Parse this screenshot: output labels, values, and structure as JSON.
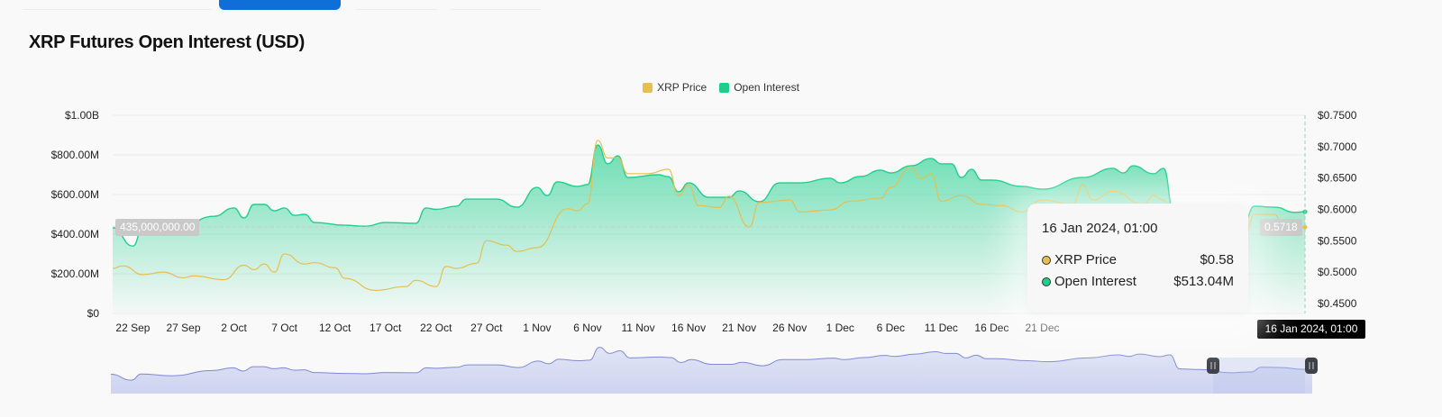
{
  "page": {
    "title": "XRP Futures Open Interest (USD)"
  },
  "legend": [
    {
      "label": "XRP Price",
      "color": "#e6bf4f"
    },
    {
      "label": "Open Interest",
      "color": "#1ecf8c"
    }
  ],
  "crosshair": {
    "left_value": "435,000,000.00",
    "right_value": "0.5718",
    "x_value": "16 Jan 2024, 01:00"
  },
  "tooltip": {
    "date": "16 Jan 2024, 01:00",
    "rows": [
      {
        "label": "XRP Price",
        "value": "$0.58",
        "color": "#e6bf4f"
      },
      {
        "label": "Open Interest",
        "value": "$513.04M",
        "color": "#1ecf8c"
      }
    ]
  },
  "chart_data": {
    "type": "area",
    "title": "XRP Futures Open Interest (USD)",
    "x_ticks": [
      "22 Sep",
      "27 Sep",
      "2 Oct",
      "7 Oct",
      "12 Oct",
      "17 Oct",
      "22 Oct",
      "27 Oct",
      "1 Nov",
      "6 Nov",
      "11 Nov",
      "16 Nov",
      "21 Nov",
      "26 Nov",
      "1 Dec",
      "6 Dec",
      "11 Dec",
      "16 Dec",
      "21 Dec"
    ],
    "x_range": [
      "2023-09-20",
      "2024-01-16"
    ],
    "y_left": {
      "ticks": [
        "$0",
        "$200.00M",
        "$400.00M",
        "$600.00M",
        "$800.00M",
        "$1.00B"
      ],
      "range": [
        0,
        1000000000
      ]
    },
    "y_right": {
      "ticks": [
        "$0.4500",
        "$0.5000",
        "$0.5500",
        "$0.6000",
        "$0.6500",
        "$0.7000",
        "$0.7500"
      ],
      "range": [
        0.4342,
        0.75
      ]
    },
    "grid": true,
    "legend_position": "top",
    "series": [
      {
        "name": "Open Interest",
        "axis": "left",
        "type": "area",
        "color": "#1ecf8c",
        "points": [
          [
            "2023-09-20",
            432
          ],
          [
            "2023-09-22",
            340
          ],
          [
            "2023-09-23",
            436
          ],
          [
            "2023-09-26",
            409
          ],
          [
            "2023-09-30",
            490
          ],
          [
            "2023-10-02",
            532
          ],
          [
            "2023-10-03",
            482
          ],
          [
            "2023-10-04",
            550
          ],
          [
            "2023-10-05",
            550
          ],
          [
            "2023-10-06",
            518
          ],
          [
            "2023-10-07",
            532
          ],
          [
            "2023-10-08",
            495
          ],
          [
            "2023-10-09",
            500
          ],
          [
            "2023-10-10",
            459
          ],
          [
            "2023-10-13",
            445
          ],
          [
            "2023-10-15",
            440
          ],
          [
            "2023-10-17",
            459
          ],
          [
            "2023-10-20",
            455
          ],
          [
            "2023-10-21",
            532
          ],
          [
            "2023-10-22",
            525
          ],
          [
            "2023-10-24",
            541
          ],
          [
            "2023-10-25",
            577
          ],
          [
            "2023-10-28",
            577
          ],
          [
            "2023-10-30",
            536
          ],
          [
            "2023-11-01",
            636
          ],
          [
            "2023-11-02",
            595
          ],
          [
            "2023-11-03",
            664
          ],
          [
            "2023-11-05",
            641
          ],
          [
            "2023-11-06",
            650
          ],
          [
            "2023-11-07",
            850
          ],
          [
            "2023-11-08",
            755
          ],
          [
            "2023-11-09",
            795
          ],
          [
            "2023-11-10",
            686
          ],
          [
            "2023-11-13",
            700
          ],
          [
            "2023-11-14",
            690
          ],
          [
            "2023-11-15",
            614
          ],
          [
            "2023-11-16",
            659
          ],
          [
            "2023-11-18",
            586
          ],
          [
            "2023-11-20",
            586
          ],
          [
            "2023-11-21",
            618
          ],
          [
            "2023-11-23",
            564
          ],
          [
            "2023-11-25",
            659
          ],
          [
            "2023-11-27",
            659
          ],
          [
            "2023-11-30",
            682
          ],
          [
            "2023-12-01",
            659
          ],
          [
            "2023-12-03",
            691
          ],
          [
            "2023-12-05",
            723
          ],
          [
            "2023-12-06",
            709
          ],
          [
            "2023-12-08",
            745
          ],
          [
            "2023-12-10",
            782
          ],
          [
            "2023-12-11",
            755
          ],
          [
            "2023-12-12",
            755
          ],
          [
            "2023-12-13",
            686
          ],
          [
            "2023-12-14",
            727
          ],
          [
            "2023-12-15",
            673
          ],
          [
            "2023-12-16",
            673
          ],
          [
            "2023-12-19",
            641
          ],
          [
            "2023-12-21",
            627
          ],
          [
            "2023-12-25",
            686
          ],
          [
            "2023-12-28",
            732
          ],
          [
            "2023-12-29",
            709
          ],
          [
            "2023-12-30",
            745
          ],
          [
            "2024-01-01",
            705
          ],
          [
            "2024-01-02",
            732
          ],
          [
            "2024-01-03",
            514
          ],
          [
            "2024-01-05",
            505
          ],
          [
            "2024-01-08",
            455
          ],
          [
            "2024-01-10",
            468
          ],
          [
            "2024-01-11",
            541
          ],
          [
            "2024-01-13",
            536
          ],
          [
            "2024-01-15",
            510
          ],
          [
            "2024-01-16",
            513.04
          ]
        ],
        "unit": "USD millions"
      },
      {
        "name": "XRP Price",
        "axis": "right",
        "type": "line",
        "color": "#e6bf4f",
        "points": [
          [
            "2023-09-20",
            0.506
          ],
          [
            "2023-09-21",
            0.51
          ],
          [
            "2023-09-23",
            0.496
          ],
          [
            "2023-09-25",
            0.5
          ],
          [
            "2023-09-27",
            0.491
          ],
          [
            "2023-09-28",
            0.494
          ],
          [
            "2023-10-01",
            0.488
          ],
          [
            "2023-10-03",
            0.511
          ],
          [
            "2023-10-04",
            0.504
          ],
          [
            "2023-10-05",
            0.513
          ],
          [
            "2023-10-06",
            0.5
          ],
          [
            "2023-10-07",
            0.529
          ],
          [
            "2023-10-09",
            0.513
          ],
          [
            "2023-10-10",
            0.515
          ],
          [
            "2023-10-12",
            0.507
          ],
          [
            "2023-10-13",
            0.49
          ],
          [
            "2023-10-16",
            0.471
          ],
          [
            "2023-10-19",
            0.477
          ],
          [
            "2023-10-20",
            0.487
          ],
          [
            "2023-10-22",
            0.477
          ],
          [
            "2023-10-23",
            0.509
          ],
          [
            "2023-10-24",
            0.506
          ],
          [
            "2023-10-26",
            0.514
          ],
          [
            "2023-10-27",
            0.55
          ],
          [
            "2023-10-29",
            0.543
          ],
          [
            "2023-10-30",
            0.533
          ],
          [
            "2023-11-01",
            0.539
          ],
          [
            "2023-11-04",
            0.601
          ],
          [
            "2023-11-05",
            0.598
          ],
          [
            "2023-11-06",
            0.609
          ],
          [
            "2023-11-07",
            0.71
          ],
          [
            "2023-11-08",
            0.682
          ],
          [
            "2023-11-09",
            0.682
          ],
          [
            "2023-11-10",
            0.657
          ],
          [
            "2023-11-12",
            0.657
          ],
          [
            "2023-11-14",
            0.664
          ],
          [
            "2023-11-15",
            0.622
          ],
          [
            "2023-11-16",
            0.639
          ],
          [
            "2023-11-17",
            0.606
          ],
          [
            "2023-11-19",
            0.603
          ],
          [
            "2023-11-20",
            0.621
          ],
          [
            "2023-11-22",
            0.572
          ],
          [
            "2023-11-23",
            0.611
          ],
          [
            "2023-11-26",
            0.615
          ],
          [
            "2023-11-27",
            0.596
          ],
          [
            "2023-11-30",
            0.599
          ],
          [
            "2023-12-02",
            0.613
          ],
          [
            "2023-12-05",
            0.618
          ],
          [
            "2023-12-06",
            0.635
          ],
          [
            "2023-12-08",
            0.668
          ],
          [
            "2023-12-09",
            0.649
          ],
          [
            "2023-12-10",
            0.657
          ],
          [
            "2023-12-11",
            0.613
          ],
          [
            "2023-12-13",
            0.622
          ],
          [
            "2023-12-15",
            0.608
          ],
          [
            "2023-12-17",
            0.606
          ],
          [
            "2023-12-19",
            0.596
          ],
          [
            "2023-12-21",
            0.615
          ],
          [
            "2023-12-24",
            0.608
          ],
          [
            "2023-12-25",
            0.639
          ],
          [
            "2023-12-26",
            0.615
          ],
          [
            "2023-12-28",
            0.629
          ],
          [
            "2023-12-31",
            0.608
          ],
          [
            "2024-01-01",
            0.622
          ],
          [
            "2024-01-02",
            0.615
          ],
          [
            "2024-01-03",
            0.575
          ],
          [
            "2024-01-05",
            0.579
          ],
          [
            "2024-01-08",
            0.542
          ],
          [
            "2024-01-09",
            0.568
          ],
          [
            "2024-01-10",
            0.557
          ],
          [
            "2024-01-11",
            0.592
          ],
          [
            "2024-01-13",
            0.592
          ],
          [
            "2024-01-14",
            0.563
          ],
          [
            "2024-01-16",
            0.5718
          ]
        ],
        "unit": "USD"
      }
    ]
  }
}
